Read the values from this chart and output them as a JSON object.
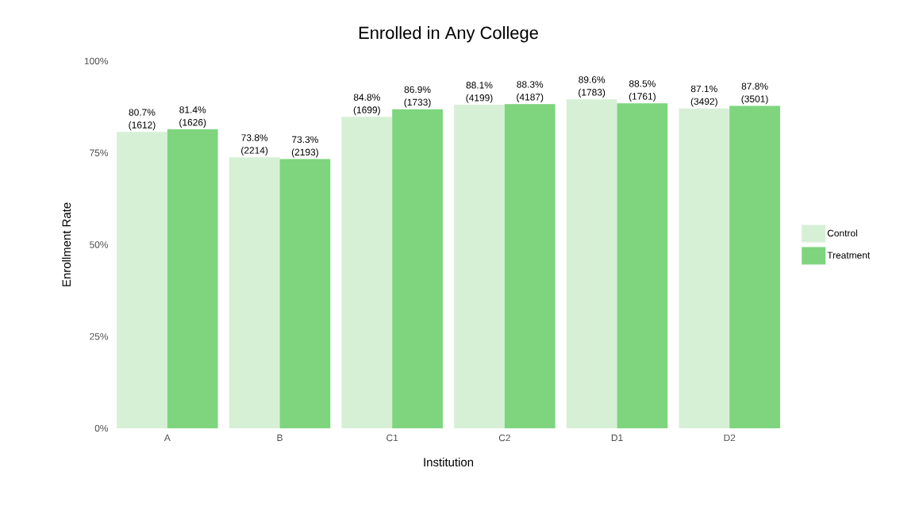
{
  "chart_data": {
    "type": "bar",
    "title": "Enrolled in Any College",
    "xlabel": "Institution",
    "ylabel": "Enrollment Rate",
    "categories": [
      "A",
      "B",
      "C1",
      "C2",
      "D1",
      "D2"
    ],
    "series": [
      {
        "name": "Control",
        "color": "#d6f0d6",
        "values": [
          80.7,
          73.8,
          84.8,
          88.1,
          89.6,
          87.1
        ],
        "value_labels": [
          "80.7% (1612)",
          "73.8% (2214)",
          "84.8% (1699)",
          "88.1% (4199)",
          "89.6% (1783)",
          "87.1% (3492)"
        ]
      },
      {
        "name": "Treatment",
        "color": "#7ed57e",
        "values": [
          81.4,
          73.3,
          86.9,
          88.3,
          88.5,
          87.8
        ],
        "value_labels": [
          "81.4% (1626)",
          "73.3% (2193)",
          "86.9% (1733)",
          "88.3% (4187)",
          "88.5% (1761)",
          "87.8% (3501)"
        ]
      }
    ],
    "ylim": [
      0,
      100
    ],
    "yticks": [
      {
        "value": 0,
        "label": "0%"
      },
      {
        "value": 25,
        "label": "25%"
      },
      {
        "value": 50,
        "label": "50%"
      },
      {
        "value": 75,
        "label": "75%"
      },
      {
        "value": 100,
        "label": "100%"
      }
    ],
    "grid": false,
    "legend": "right"
  }
}
